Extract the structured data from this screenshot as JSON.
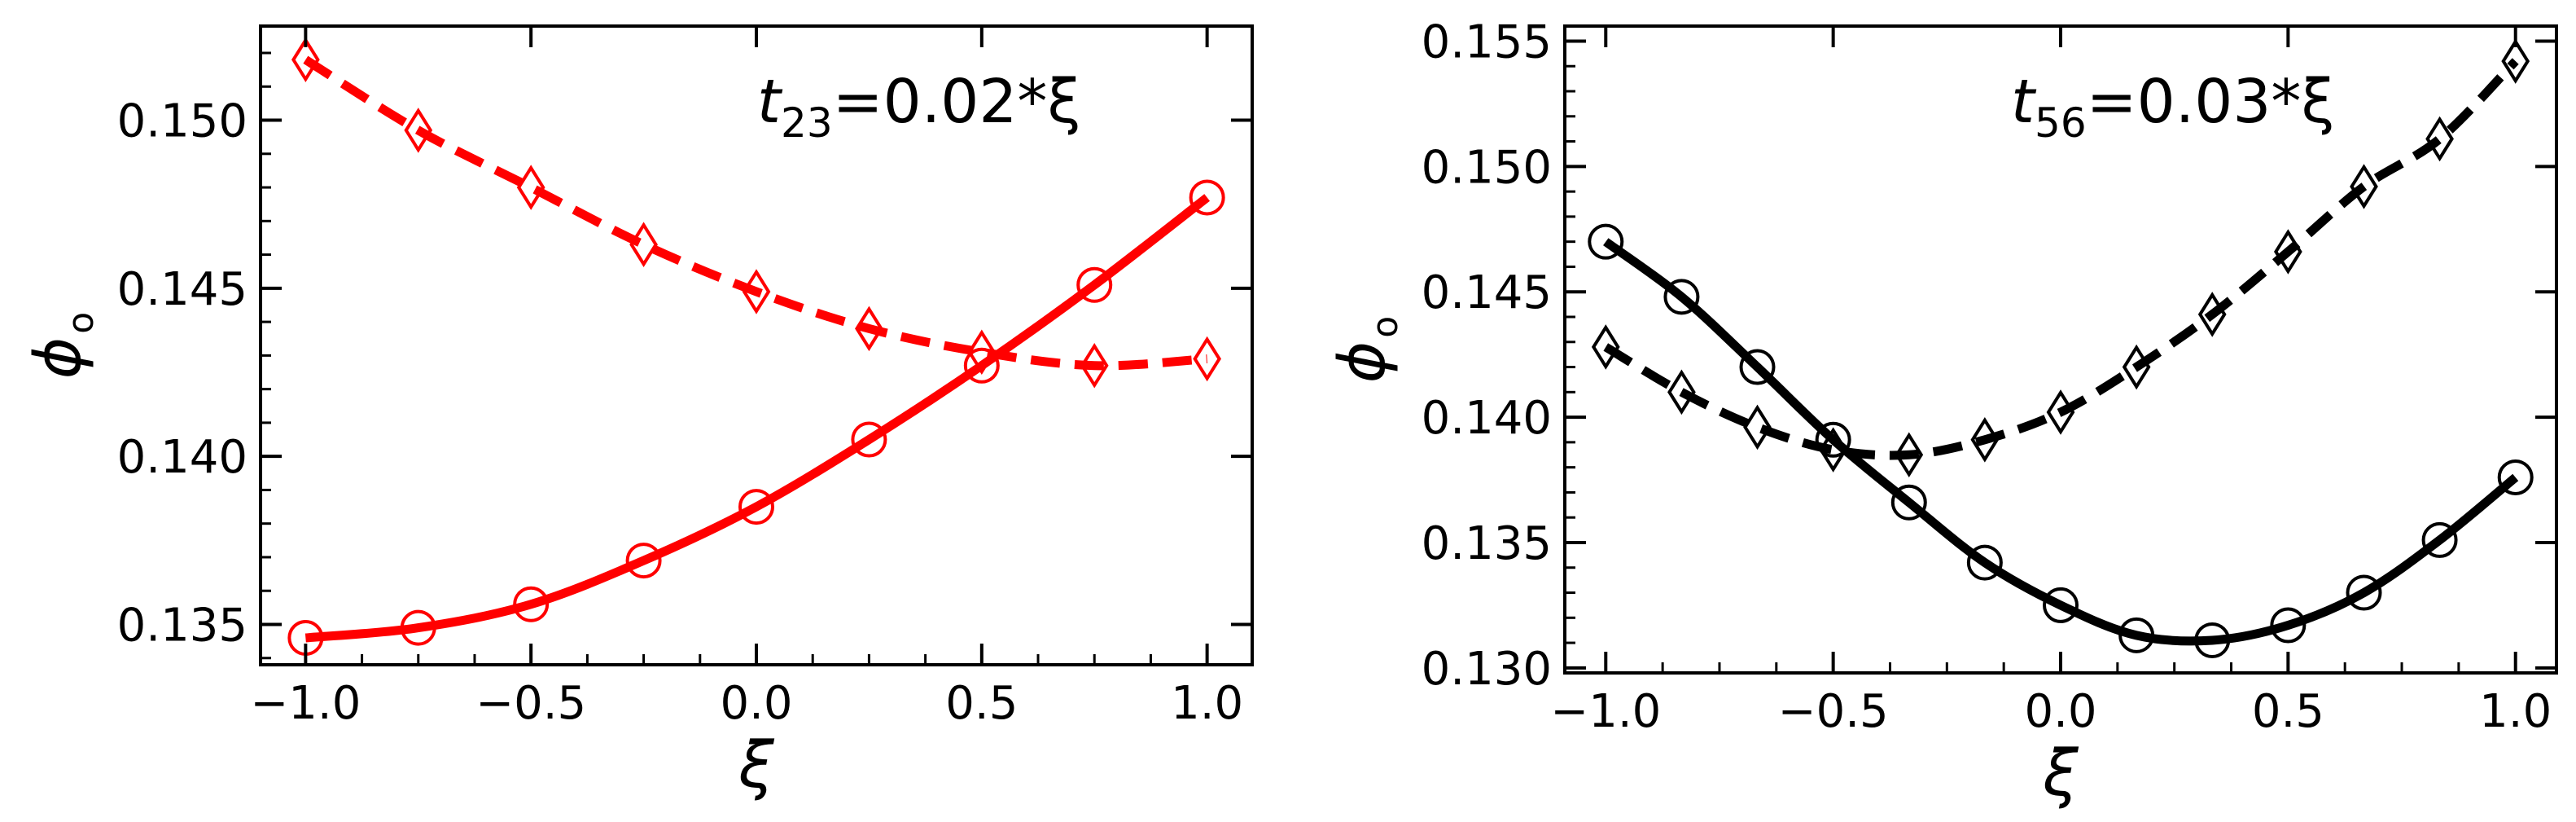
{
  "chart_data": [
    {
      "type": "line",
      "xlabel": "ξ",
      "ylabel": "ϕ",
      "ylabel_sub": "o",
      "annotation": {
        "main": "t",
        "sub": "23",
        "rest": "=0.02*ξ"
      },
      "xlim": [
        -1.1,
        1.1
      ],
      "ylim": [
        0.1338,
        0.1528
      ],
      "xticks": [
        -1.0,
        -0.5,
        0.0,
        0.5,
        1.0
      ],
      "xtick_labels": [
        "−1.0",
        "−0.5",
        "0.0",
        "0.5",
        "1.0"
      ],
      "yticks": [
        0.135,
        0.14,
        0.145,
        0.15
      ],
      "ytick_labels": [
        "0.135",
        "0.140",
        "0.145",
        "0.150"
      ],
      "series": [
        {
          "style": "solid",
          "marker": "circle",
          "color": "#ff0000",
          "x": [
            -1.0,
            -0.75,
            -0.5,
            -0.25,
            0.0,
            0.25,
            0.5,
            0.75,
            1.0
          ],
          "y": [
            0.1346,
            0.1349,
            0.1356,
            0.1369,
            0.1385,
            0.1405,
            0.1427,
            0.1451,
            0.1477
          ]
        },
        {
          "style": "dashed",
          "marker": "diamond",
          "color": "#ff0000",
          "x": [
            -1.0,
            -0.75,
            -0.5,
            -0.25,
            0.0,
            0.25,
            0.5,
            0.75,
            1.0
          ],
          "y": [
            0.1518,
            0.1497,
            0.148,
            0.1463,
            0.1449,
            0.1438,
            0.1431,
            0.1427,
            0.1429
          ]
        }
      ]
    },
    {
      "type": "line",
      "xlabel": "ξ",
      "ylabel": "ϕ",
      "ylabel_sub": "o",
      "annotation": {
        "main": "t",
        "sub": "56",
        "rest": "=0.03*ξ"
      },
      "xlim": [
        -1.09,
        1.09
      ],
      "ylim": [
        0.1298,
        0.1556
      ],
      "xticks": [
        -1.0,
        -0.5,
        0.0,
        0.5,
        1.0
      ],
      "xtick_labels": [
        "−1.0",
        "−0.5",
        "0.0",
        "0.5",
        "1.0"
      ],
      "yticks": [
        0.13,
        0.135,
        0.14,
        0.145,
        0.15,
        0.155
      ],
      "ytick_labels": [
        "0.130",
        "0.135",
        "0.140",
        "0.145",
        "0.150",
        "0.155"
      ],
      "series": [
        {
          "style": "solid",
          "marker": "circle",
          "color": "#000000",
          "x": [
            -1.0,
            -0.8333,
            -0.6667,
            -0.5,
            -0.3333,
            -0.1667,
            0.0,
            0.1667,
            0.3333,
            0.5,
            0.6667,
            0.8333,
            1.0
          ],
          "y": [
            0.147,
            0.1448,
            0.142,
            0.1391,
            0.1366,
            0.1342,
            0.1325,
            0.1313,
            0.1311,
            0.1317,
            0.133,
            0.1351,
            0.1376
          ]
        },
        {
          "style": "dashed",
          "marker": "diamond",
          "color": "#000000",
          "x": [
            -1.0,
            -0.8333,
            -0.6667,
            -0.5,
            -0.3333,
            -0.1667,
            0.0,
            0.1667,
            0.3333,
            0.5,
            0.6667,
            0.8333,
            1.0
          ],
          "y": [
            0.1428,
            0.141,
            0.1396,
            0.1387,
            0.1385,
            0.1391,
            0.1402,
            0.142,
            0.1441,
            0.1466,
            0.1492,
            0.1511,
            0.1542
          ]
        }
      ]
    }
  ]
}
